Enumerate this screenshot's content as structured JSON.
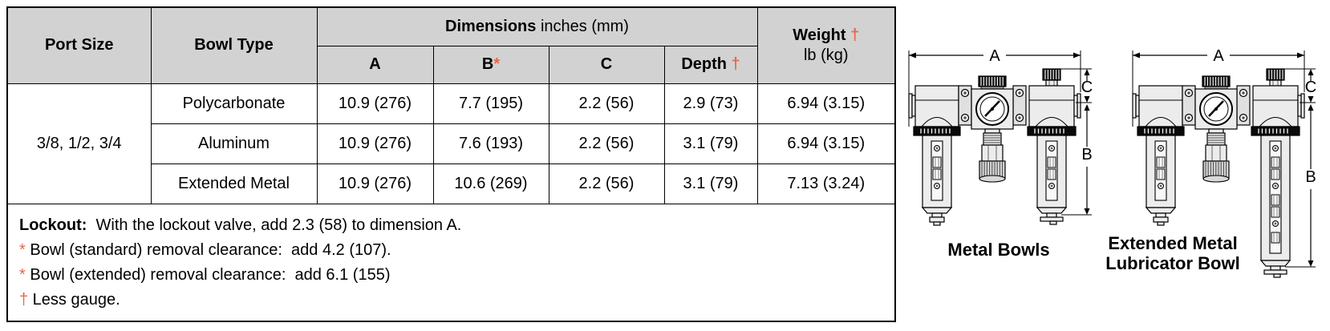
{
  "colors": {
    "accent": "#e8664c",
    "header_bg": "#d2d2d2"
  },
  "table": {
    "header": {
      "port_size": "Port Size",
      "bowl_type": "Bowl Type",
      "dimensions_bold": "Dimensions",
      "dimensions_unit": " inches (mm)",
      "col_a": "A",
      "col_b": "B",
      "col_b_mark": "*",
      "col_c": "C",
      "col_depth": "Depth ",
      "col_depth_mark": "†",
      "weight_bold": "Weight ",
      "weight_mark": "†",
      "weight_sub": "lb (kg)"
    },
    "port_size_value": "3/8, 1/2, 3/4",
    "rows": [
      {
        "bowl": "Polycarbonate",
        "a": "10.9 (276)",
        "b": "7.7 (195)",
        "c": "2.2 (56)",
        "depth": "2.9 (73)",
        "weight": "6.94 (3.15)"
      },
      {
        "bowl": "Aluminum",
        "a": "10.9 (276)",
        "b": "7.6 (193)",
        "c": "2.2 (56)",
        "depth": "3.1 (79)",
        "weight": "6.94 (3.15)"
      },
      {
        "bowl": "Extended Metal",
        "a": "10.9 (276)",
        "b": "10.6 (269)",
        "c": "2.2 (56)",
        "depth": "3.1 (79)",
        "weight": "7.13 (3.24)"
      }
    ],
    "notes": {
      "lockout_label": "Lockout:",
      "lockout_text": "  With the lockout valve, add 2.3 (58) to dimension A.",
      "note1_mark": "*",
      "note1_text": " Bowl (standard) removal clearance:  add 4.2 (107).",
      "note2_mark": "*",
      "note2_text": " Bowl (extended) removal clearance:  add 6.1 (155)",
      "note3_mark": "†",
      "note3_text": " Less gauge."
    }
  },
  "diagrams": {
    "metal_bowls": {
      "caption": "Metal Bowls",
      "dim_a": "A",
      "dim_b": "B",
      "dim_c": "C"
    },
    "extended_metal": {
      "caption_line1": "Extended Metal",
      "caption_line2": "Lubricator Bowl",
      "dim_a": "A",
      "dim_b": "B",
      "dim_c": "C"
    }
  }
}
